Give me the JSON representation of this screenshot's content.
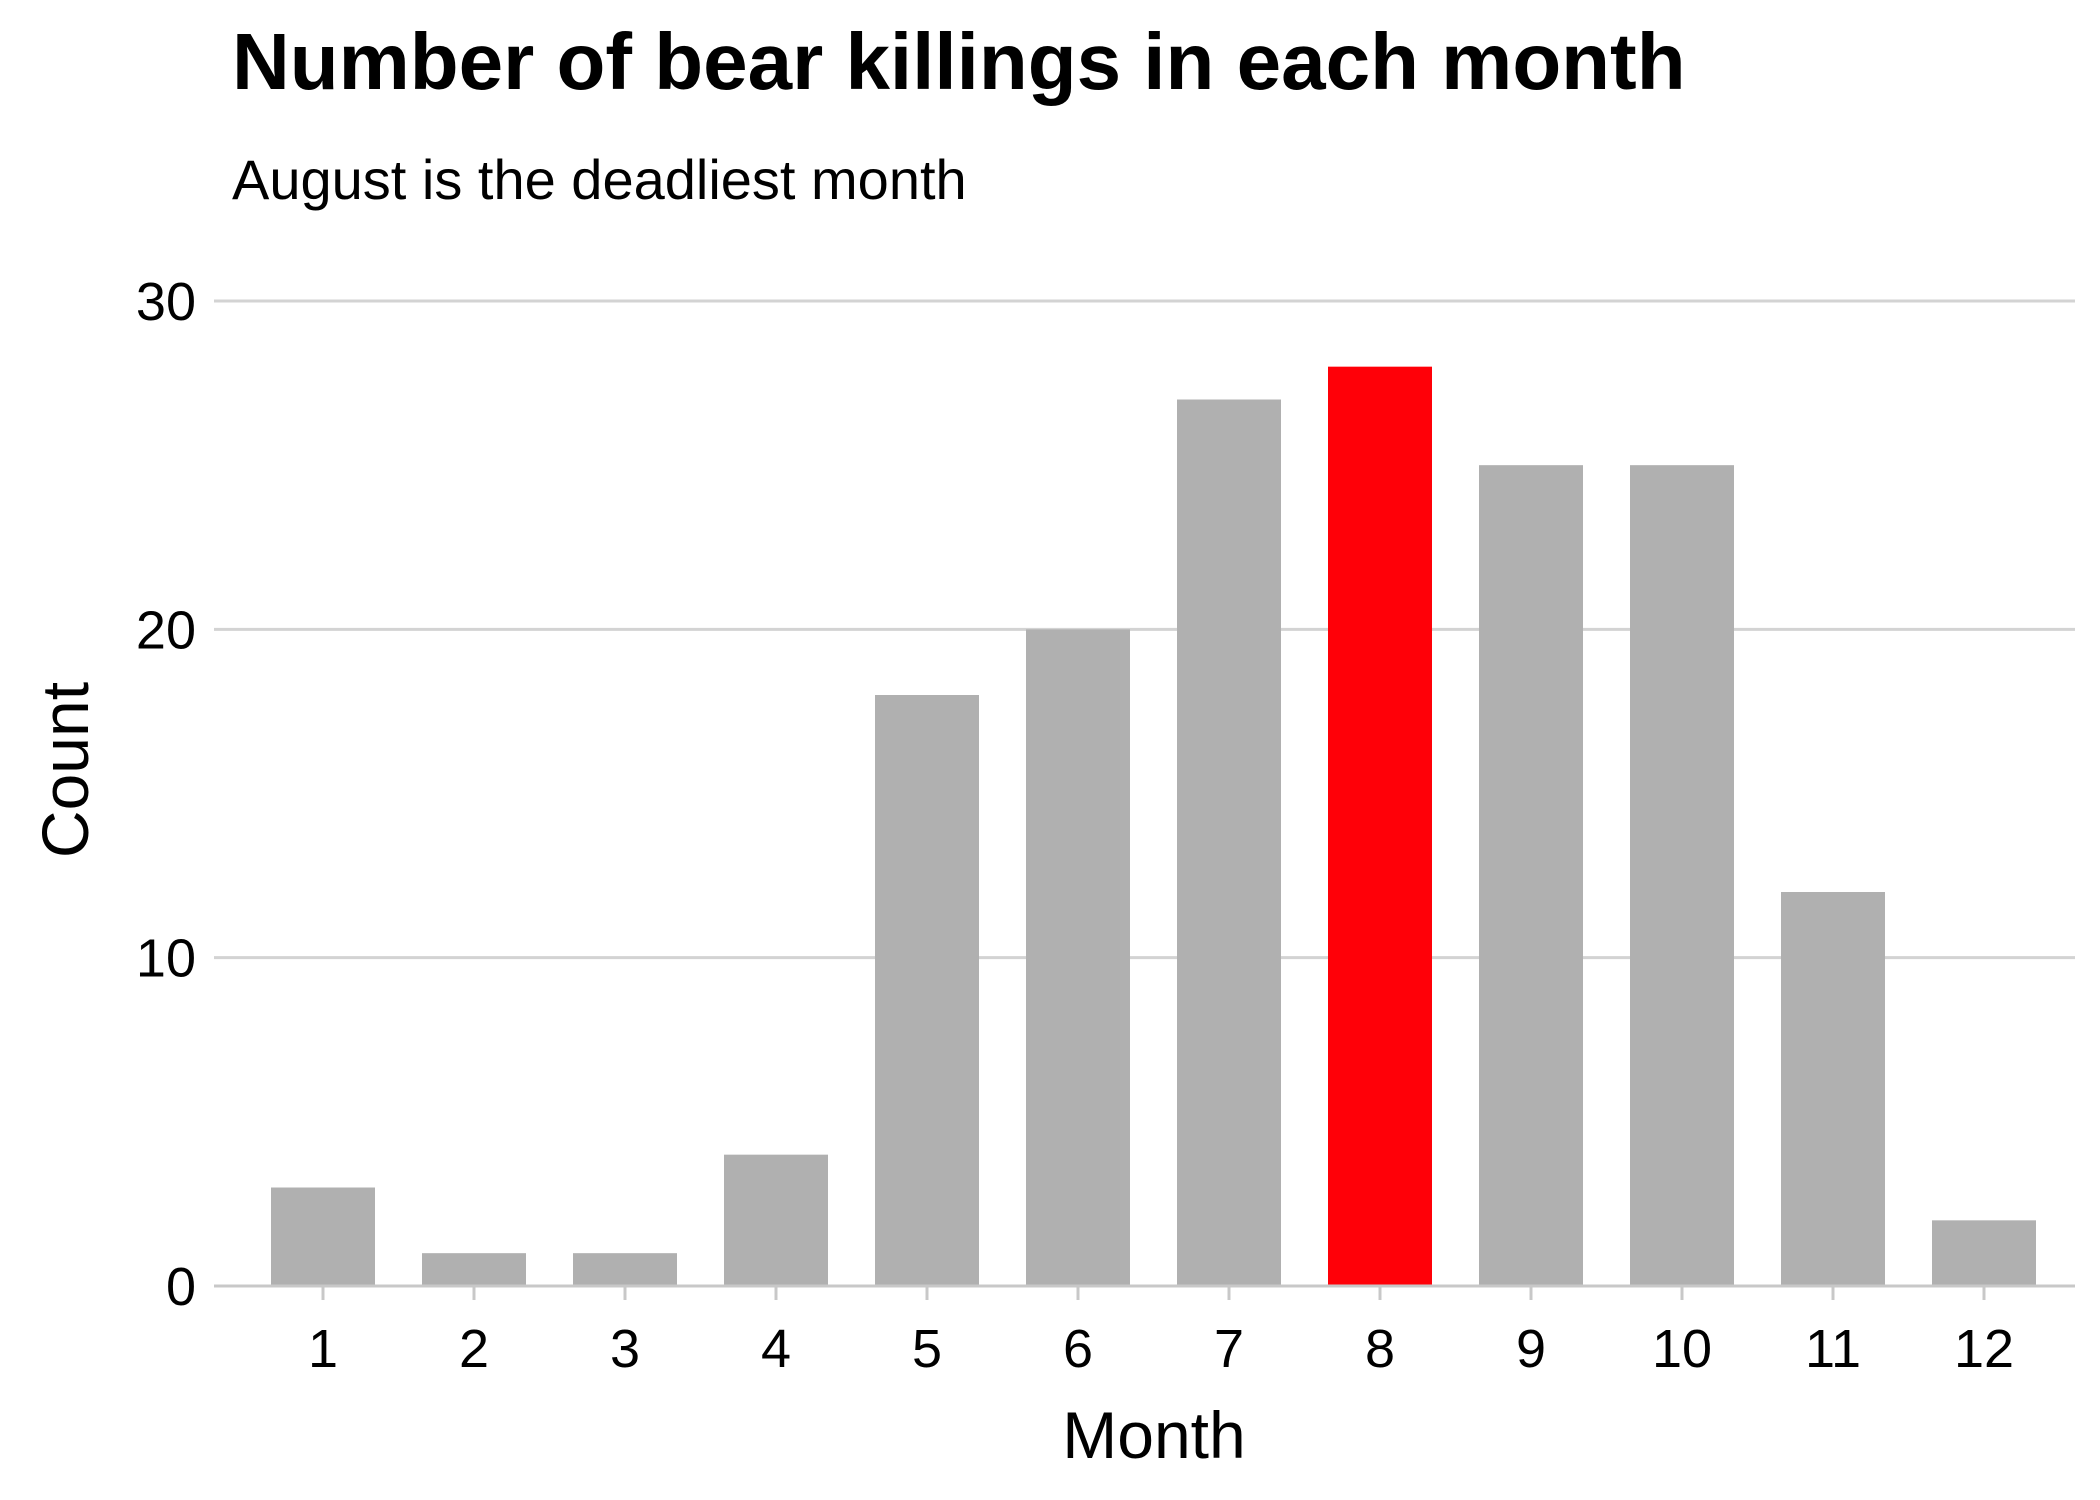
{
  "chart_data": {
    "type": "bar",
    "title": "Number of bear killings in each month",
    "subtitle": "August is the deadliest month",
    "xlabel": "Month",
    "ylabel": "Count",
    "categories": [
      "1",
      "2",
      "3",
      "4",
      "5",
      "6",
      "7",
      "8",
      "9",
      "10",
      "11",
      "12"
    ],
    "values": [
      3,
      1,
      1,
      4,
      18,
      20,
      27,
      28,
      25,
      25,
      12,
      2
    ],
    "highlight_category": "8",
    "ylim": [
      0,
      30
    ],
    "yticks": [
      "0",
      "10",
      "20",
      "30"
    ],
    "grid": "horizontal",
    "legend": "none",
    "colors": {
      "bar": "#b0b0b0",
      "highlight": "#ff0008",
      "grid": "#d3d3d3",
      "axis_line": "#c8c8c8"
    }
  }
}
